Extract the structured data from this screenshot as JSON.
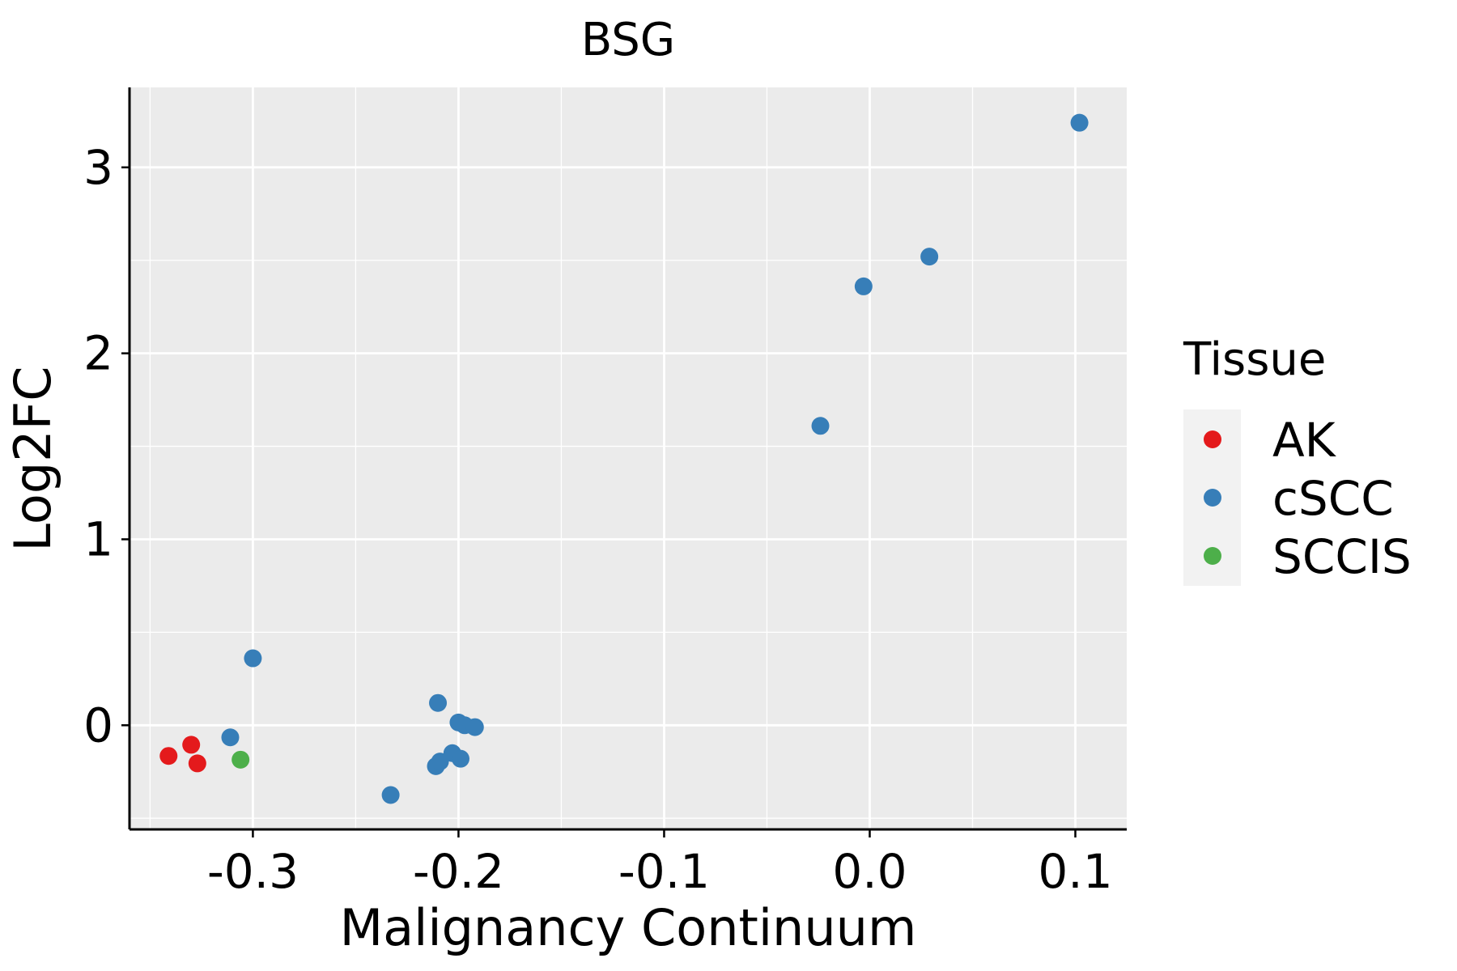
{
  "chart_data": {
    "type": "scatter",
    "title": "BSG",
    "xlabel": "Malignancy Continuum",
    "ylabel": "Log2FC",
    "xlim": [
      -0.36,
      0.125
    ],
    "ylim": [
      -0.56,
      3.43
    ],
    "x_ticks": [
      -0.3,
      -0.2,
      -0.1,
      0.0,
      0.1
    ],
    "x_tick_labels": [
      "-0.3",
      "-0.2",
      "-0.1",
      "0.0",
      "0.1"
    ],
    "y_ticks": [
      0,
      1,
      2,
      3
    ],
    "y_tick_labels": [
      "0",
      "1",
      "2",
      "3"
    ],
    "grid": true,
    "legend_title": "Tissue",
    "legend_position": "right",
    "series": [
      {
        "name": "AK",
        "color": "#E41A1C",
        "points": [
          {
            "x": -0.341,
            "y": -0.165
          },
          {
            "x": -0.33,
            "y": -0.105
          },
          {
            "x": -0.327,
            "y": -0.205
          }
        ]
      },
      {
        "name": "cSCC",
        "color": "#377EB8",
        "points": [
          {
            "x": -0.311,
            "y": -0.065
          },
          {
            "x": -0.3,
            "y": 0.36
          },
          {
            "x": -0.233,
            "y": -0.375
          },
          {
            "x": -0.21,
            "y": 0.12
          },
          {
            "x": -0.211,
            "y": -0.22
          },
          {
            "x": -0.209,
            "y": -0.195
          },
          {
            "x": -0.203,
            "y": -0.15
          },
          {
            "x": -0.2,
            "y": 0.015
          },
          {
            "x": -0.197,
            "y": 0.0
          },
          {
            "x": -0.199,
            "y": -0.18
          },
          {
            "x": -0.192,
            "y": -0.01
          },
          {
            "x": -0.024,
            "y": 1.61
          },
          {
            "x": -0.003,
            "y": 2.36
          },
          {
            "x": 0.029,
            "y": 2.52
          },
          {
            "x": 0.102,
            "y": 3.24
          }
        ]
      },
      {
        "name": "SCCIS",
        "color": "#4DAF4A",
        "points": [
          {
            "x": -0.306,
            "y": -0.185
          }
        ]
      }
    ]
  }
}
